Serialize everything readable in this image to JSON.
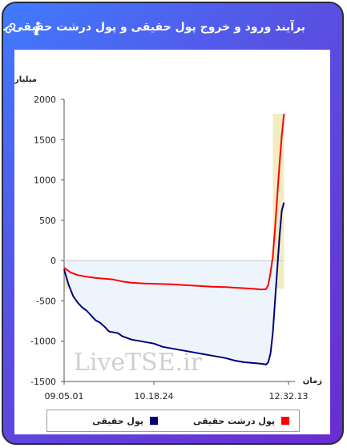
{
  "header": {
    "title": "برآیند ورود و خروج پول حقیقی و پول درشت حقیقی به بازار",
    "link_icon": "link-icon",
    "info_icon_glyph": "i"
  },
  "watermark": "LiveTSE.ir",
  "chart_data": {
    "type": "line",
    "ylabel": "میلیارد تومان",
    "xlabel": "زمان",
    "ylim": [
      -1500,
      2000
    ],
    "yticks": [
      "2000",
      "1500",
      "1000",
      "500",
      "0",
      "-500",
      "-1000",
      "-1500"
    ],
    "ytick_values": [
      2000,
      1500,
      1000,
      500,
      0,
      -500,
      -1000,
      -1500
    ],
    "xlim": [
      0,
      100
    ],
    "xtick_labels": [
      {
        "label": "09.05.01",
        "x": 0
      },
      {
        "label": "10.18.24",
        "x": 40
      },
      {
        "label": "12.32.13",
        "x": 100
      }
    ],
    "legend_position": "bottom",
    "colors": {
      "real_money": "#00007a",
      "big_real_money": "#ff0000",
      "fill_negative": "#eef4fb",
      "fill_positive": "#f2ecc2"
    },
    "series": [
      {
        "name": "پول حقیقی",
        "color": "#00007a",
        "points": [
          [
            0,
            -110
          ],
          [
            2,
            -300
          ],
          [
            4,
            -440
          ],
          [
            6,
            -520
          ],
          [
            8,
            -580
          ],
          [
            10,
            -620
          ],
          [
            12,
            -680
          ],
          [
            14,
            -740
          ],
          [
            16,
            -770
          ],
          [
            18,
            -820
          ],
          [
            20,
            -880
          ],
          [
            22,
            -890
          ],
          [
            24,
            -900
          ],
          [
            26,
            -940
          ],
          [
            28,
            -960
          ],
          [
            30,
            -980
          ],
          [
            32,
            -990
          ],
          [
            34,
            -1000
          ],
          [
            36,
            -1010
          ],
          [
            40,
            -1030
          ],
          [
            44,
            -1070
          ],
          [
            48,
            -1090
          ],
          [
            52,
            -1110
          ],
          [
            56,
            -1130
          ],
          [
            60,
            -1150
          ],
          [
            64,
            -1170
          ],
          [
            68,
            -1190
          ],
          [
            72,
            -1210
          ],
          [
            76,
            -1240
          ],
          [
            80,
            -1260
          ],
          [
            84,
            -1270
          ],
          [
            88,
            -1280
          ],
          [
            90,
            -1290
          ],
          [
            91,
            -1260
          ],
          [
            92,
            -1150
          ],
          [
            93,
            -900
          ],
          [
            94,
            -500
          ],
          [
            95,
            -100
          ],
          [
            96,
            300
          ],
          [
            97,
            620
          ],
          [
            98,
            720
          ]
        ]
      },
      {
        "name": "پول درشت حقیقی",
        "color": "#ff0000",
        "points": [
          [
            0,
            -90
          ],
          [
            3,
            -150
          ],
          [
            6,
            -180
          ],
          [
            10,
            -200
          ],
          [
            14,
            -215
          ],
          [
            18,
            -225
          ],
          [
            22,
            -235
          ],
          [
            26,
            -260
          ],
          [
            30,
            -275
          ],
          [
            36,
            -285
          ],
          [
            42,
            -290
          ],
          [
            48,
            -295
          ],
          [
            54,
            -305
          ],
          [
            60,
            -315
          ],
          [
            66,
            -325
          ],
          [
            72,
            -330
          ],
          [
            78,
            -340
          ],
          [
            84,
            -350
          ],
          [
            88,
            -360
          ],
          [
            90,
            -355
          ],
          [
            91,
            -300
          ],
          [
            92,
            -150
          ],
          [
            93,
            50
          ],
          [
            94,
            400
          ],
          [
            95,
            800
          ],
          [
            96,
            1200
          ],
          [
            97,
            1550
          ],
          [
            98,
            1820
          ]
        ]
      }
    ]
  }
}
